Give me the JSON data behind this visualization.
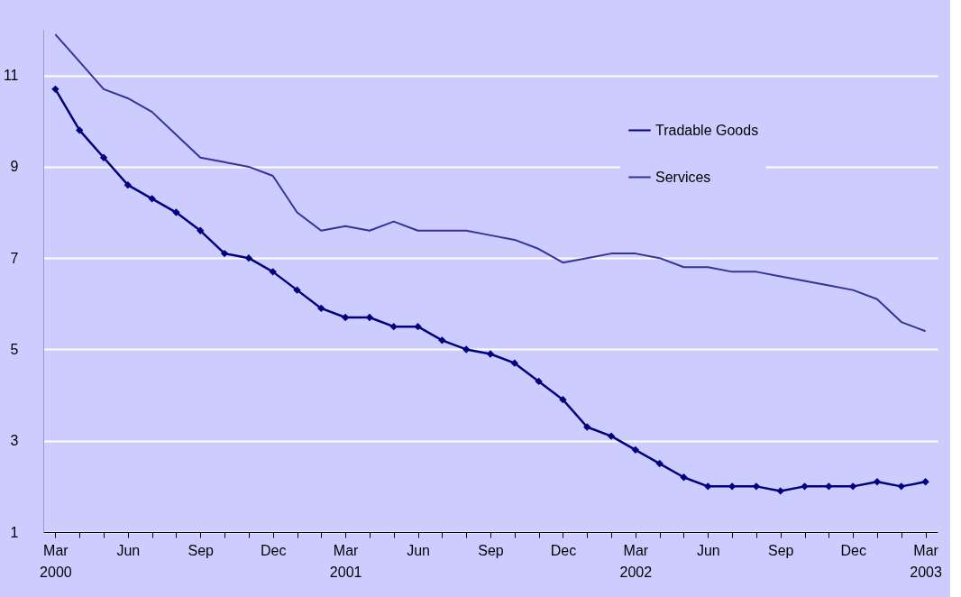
{
  "chart_data": {
    "type": "line",
    "categories": [
      "Mar 2000",
      null,
      null,
      "Jun",
      null,
      null,
      "Sep",
      null,
      null,
      "Dec",
      null,
      null,
      "Mar 2001",
      null,
      null,
      "Jun",
      null,
      null,
      "Sep",
      null,
      null,
      "Dec",
      null,
      null,
      "Mar 2002",
      null,
      null,
      "Jun",
      null,
      null,
      "Sep",
      null,
      null,
      "Dec",
      null,
      null,
      "Mar 2003"
    ],
    "series": [
      {
        "name": "Tradable Goods",
        "color": "#000080",
        "marker": "diamond",
        "values": [
          10.7,
          9.8,
          9.2,
          8.6,
          8.3,
          8.0,
          7.6,
          7.1,
          7.0,
          6.7,
          6.3,
          5.9,
          5.7,
          5.7,
          5.5,
          5.5,
          5.2,
          5.0,
          4.9,
          4.7,
          4.3,
          3.9,
          3.3,
          3.1,
          2.8,
          2.5,
          2.2,
          2.0,
          2.0,
          2.0,
          1.9,
          2.0,
          2.0,
          2.0,
          2.1,
          2.0,
          2.1
        ]
      },
      {
        "name": "Services",
        "color": "#333399",
        "marker": "none",
        "values": [
          11.9,
          11.3,
          10.7,
          10.5,
          10.2,
          9.7,
          9.2,
          9.1,
          9.0,
          8.8,
          8.0,
          7.6,
          7.7,
          7.6,
          7.8,
          7.6,
          7.6,
          7.6,
          7.5,
          7.4,
          7.2,
          6.9,
          7.0,
          7.1,
          7.1,
          7.0,
          6.8,
          6.8,
          6.7,
          6.7,
          6.6,
          6.5,
          6.4,
          6.3,
          6.1,
          5.6,
          5.4
        ]
      }
    ],
    "ylim": [
      1,
      12
    ],
    "yticks": [
      1,
      3,
      5,
      7,
      9,
      11
    ],
    "grid": "y",
    "legend": "top right"
  }
}
